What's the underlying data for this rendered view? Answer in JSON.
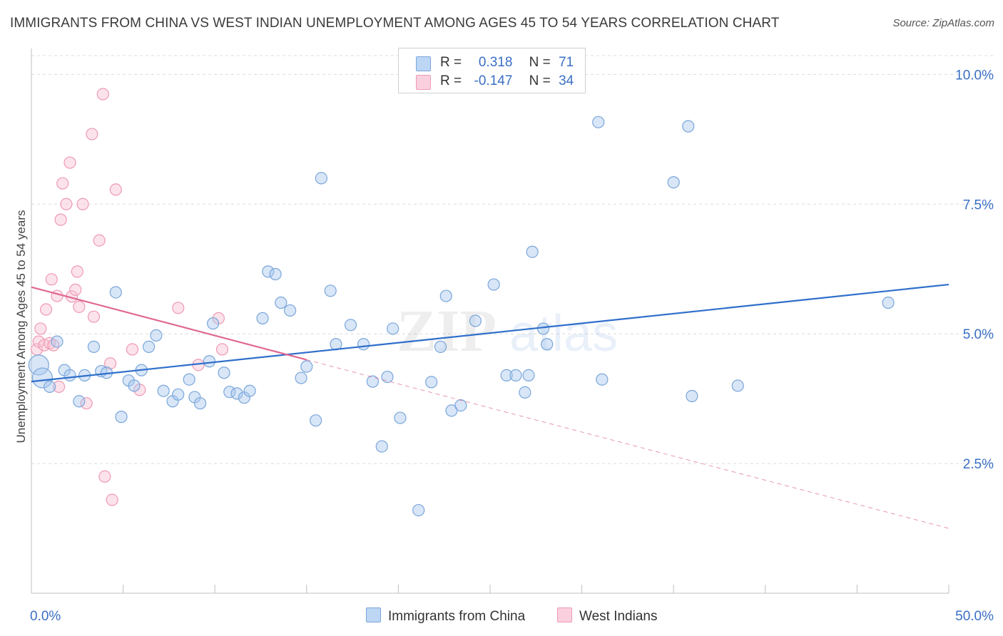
{
  "chart_data": {
    "type": "scatter",
    "title": "IMMIGRANTS FROM CHINA VS WEST INDIAN UNEMPLOYMENT AMONG AGES 45 TO 54 YEARS CORRELATION CHART",
    "source": "Source: ZipAtlas.com",
    "xlabel": "",
    "ylabel": "Unemployment Among Ages 45 to 54 years",
    "xlim": [
      0,
      50
    ],
    "ylim": [
      0,
      10.5
    ],
    "x_tick_labels": {
      "min": "0.0%",
      "max": "50.0%"
    },
    "y_ticks": [
      {
        "value": 2.5,
        "label": "2.5%"
      },
      {
        "value": 5.0,
        "label": "5.0%"
      },
      {
        "value": 7.5,
        "label": "7.5%"
      },
      {
        "value": 10.0,
        "label": "10.0%"
      }
    ],
    "grid": "horizontal-dashed",
    "watermark": {
      "zip": "ZIP",
      "atlas": "atlas"
    },
    "legend": {
      "rows": [
        {
          "r_label": "R =",
          "r_value": "0.318",
          "n_label": "N =",
          "n_value": "71"
        },
        {
          "r_label": "R =",
          "r_value": "-0.147",
          "n_label": "N =",
          "n_value": "34"
        }
      ]
    },
    "series": [
      {
        "name": "Immigrants from China",
        "color": "#a8c8ee",
        "stroke": "#7aa6da",
        "line_color": "#2f6fcb",
        "trend": {
          "x0": 0.0,
          "y0": 4.08,
          "x1": 50.0,
          "y1": 5.95
        },
        "points": [
          [
            0.4,
            4.4
          ],
          [
            0.6,
            4.15
          ],
          [
            1.0,
            3.98
          ],
          [
            1.4,
            4.85
          ],
          [
            1.8,
            4.3
          ],
          [
            2.1,
            4.2
          ],
          [
            2.6,
            3.7
          ],
          [
            2.9,
            4.2
          ],
          [
            3.4,
            4.75
          ],
          [
            3.8,
            4.28
          ],
          [
            4.1,
            4.25
          ],
          [
            4.6,
            5.8
          ],
          [
            4.9,
            3.4
          ],
          [
            5.3,
            4.1
          ],
          [
            5.6,
            4.0
          ],
          [
            6.0,
            4.3
          ],
          [
            6.4,
            4.75
          ],
          [
            6.8,
            4.97
          ],
          [
            7.2,
            3.9
          ],
          [
            7.7,
            3.7
          ],
          [
            8.0,
            3.83
          ],
          [
            8.6,
            4.12
          ],
          [
            8.9,
            3.78
          ],
          [
            9.2,
            3.66
          ],
          [
            9.7,
            4.47
          ],
          [
            9.9,
            5.2
          ],
          [
            10.5,
            4.25
          ],
          [
            10.8,
            3.88
          ],
          [
            11.2,
            3.85
          ],
          [
            11.6,
            3.77
          ],
          [
            11.9,
            3.9
          ],
          [
            12.6,
            5.3
          ],
          [
            12.9,
            6.2
          ],
          [
            13.3,
            6.15
          ],
          [
            13.6,
            5.6
          ],
          [
            14.1,
            5.45
          ],
          [
            14.7,
            4.15
          ],
          [
            15.0,
            4.37
          ],
          [
            15.5,
            3.33
          ],
          [
            15.8,
            8.0
          ],
          [
            16.3,
            5.83
          ],
          [
            16.6,
            4.8
          ],
          [
            17.4,
            5.17
          ],
          [
            18.1,
            4.8
          ],
          [
            18.6,
            4.08
          ],
          [
            19.1,
            2.83
          ],
          [
            19.4,
            4.17
          ],
          [
            19.7,
            5.1
          ],
          [
            20.1,
            3.38
          ],
          [
            21.1,
            1.6
          ],
          [
            21.8,
            4.07
          ],
          [
            22.3,
            4.75
          ],
          [
            22.6,
            5.73
          ],
          [
            22.9,
            3.52
          ],
          [
            23.4,
            3.62
          ],
          [
            24.2,
            5.25
          ],
          [
            25.2,
            5.95
          ],
          [
            25.9,
            4.2
          ],
          [
            26.4,
            4.2
          ],
          [
            26.9,
            3.87
          ],
          [
            27.3,
            6.58
          ],
          [
            27.9,
            5.1
          ],
          [
            28.1,
            4.8
          ],
          [
            27.1,
            4.2
          ],
          [
            30.9,
            9.08
          ],
          [
            31.1,
            4.12
          ],
          [
            35.0,
            7.92
          ],
          [
            35.8,
            9.0
          ],
          [
            36.0,
            3.8
          ],
          [
            38.5,
            4.0
          ],
          [
            46.7,
            5.6
          ]
        ]
      },
      {
        "name": "West Indians",
        "color": "#f8c2d3",
        "stroke": "#ee9ab4",
        "line_color": "#e06892",
        "trend": {
          "x0": 0.0,
          "y0": 5.9,
          "x1": 15.0,
          "y1": 4.5
        },
        "trend_dashed": {
          "x0": 15.0,
          "y0": 4.5,
          "x1": 50.0,
          "y1": 1.25
        },
        "points": [
          [
            0.3,
            4.7
          ],
          [
            0.4,
            4.85
          ],
          [
            0.5,
            5.1
          ],
          [
            0.7,
            4.78
          ],
          [
            0.8,
            5.47
          ],
          [
            1.0,
            4.82
          ],
          [
            1.1,
            6.05
          ],
          [
            1.2,
            4.78
          ],
          [
            1.4,
            5.73
          ],
          [
            1.5,
            3.98
          ],
          [
            1.6,
            7.2
          ],
          [
            1.7,
            7.9
          ],
          [
            1.9,
            7.5
          ],
          [
            2.1,
            8.3
          ],
          [
            2.2,
            5.72
          ],
          [
            2.4,
            5.85
          ],
          [
            2.5,
            6.2
          ],
          [
            2.6,
            5.52
          ],
          [
            2.8,
            7.5
          ],
          [
            3.0,
            3.66
          ],
          [
            3.3,
            8.85
          ],
          [
            3.4,
            5.33
          ],
          [
            3.7,
            6.8
          ],
          [
            3.9,
            9.62
          ],
          [
            4.0,
            2.25
          ],
          [
            4.3,
            4.43
          ],
          [
            4.4,
            1.8
          ],
          [
            4.6,
            7.78
          ],
          [
            5.5,
            4.7
          ],
          [
            5.9,
            3.92
          ],
          [
            8.0,
            5.5
          ],
          [
            9.1,
            4.4
          ],
          [
            10.2,
            5.3
          ],
          [
            10.4,
            4.7
          ]
        ]
      }
    ]
  }
}
